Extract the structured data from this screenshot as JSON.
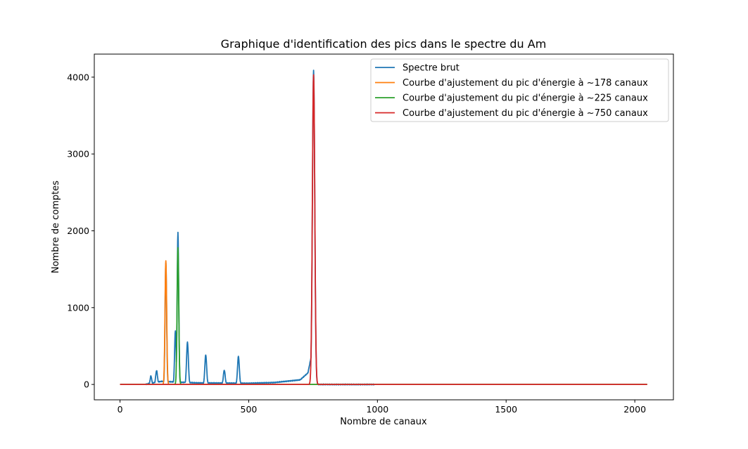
{
  "chart_data": {
    "type": "line",
    "title": "Graphique d'identification des pics dans le spectre du Am",
    "xlabel": "Nombre de canaux",
    "ylabel": "Nombre de comptes",
    "xlim": [
      -100,
      2150
    ],
    "ylim": [
      -200,
      4300
    ],
    "xticks": [
      0,
      500,
      1000,
      1500,
      2000
    ],
    "yticks": [
      0,
      1000,
      2000,
      3000,
      4000
    ],
    "grid": false,
    "legend_position": "top-right",
    "series": [
      {
        "name": "Spectre brut",
        "color": "#1f77b4",
        "peaks": [
          {
            "center": 120,
            "height": 110,
            "width": 3
          },
          {
            "center": 142,
            "height": 180,
            "width": 3.5
          },
          {
            "center": 178,
            "height": 1590,
            "width": 3
          },
          {
            "center": 215,
            "height": 700,
            "width": 3
          },
          {
            "center": 225,
            "height": 1980,
            "width": 3
          },
          {
            "center": 262,
            "height": 550,
            "width": 3.5
          },
          {
            "center": 333,
            "height": 385,
            "width": 3.5
          },
          {
            "center": 405,
            "height": 185,
            "width": 3.5
          },
          {
            "center": 460,
            "height": 365,
            "width": 3.5
          },
          {
            "center": 752,
            "height": 4090,
            "width": 4.5
          }
        ],
        "baseline": [
          {
            "x": 0,
            "y": 0
          },
          {
            "x": 100,
            "y": 0
          },
          {
            "x": 110,
            "y": 10
          },
          {
            "x": 160,
            "y": 40
          },
          {
            "x": 230,
            "y": 30
          },
          {
            "x": 300,
            "y": 20
          },
          {
            "x": 500,
            "y": 15
          },
          {
            "x": 600,
            "y": 25
          },
          {
            "x": 700,
            "y": 60
          },
          {
            "x": 730,
            "y": 150
          },
          {
            "x": 745,
            "y": 400
          },
          {
            "x": 760,
            "y": 0
          },
          {
            "x": 980,
            "y": 0
          },
          {
            "x": 2048,
            "y": 0
          }
        ]
      },
      {
        "name": "Courbe d'ajustement du pic d'énergie à ~178 canaux",
        "color": "#ff7f0e",
        "gaussian": {
          "center": 178,
          "amplitude": 1610,
          "sigma": 3.2
        }
      },
      {
        "name": "Courbe d'ajustement du pic d'énergie à ~225 canaux",
        "color": "#2ca02c",
        "gaussian": {
          "center": 225,
          "amplitude": 1780,
          "sigma": 3.2
        }
      },
      {
        "name": "Courbe d'ajustement du pic d'énergie à ~750 canaux",
        "color": "#d62728",
        "gaussian": {
          "center": 752,
          "amplitude": 4030,
          "sigma": 4.6
        }
      }
    ]
  }
}
